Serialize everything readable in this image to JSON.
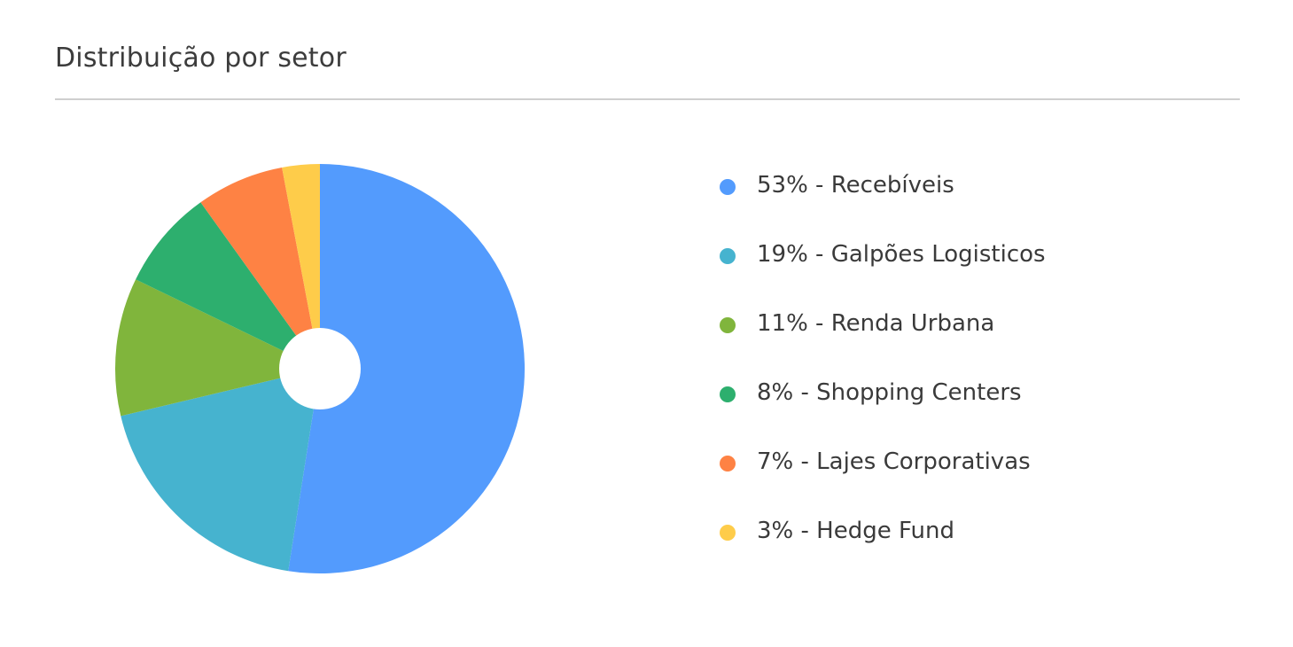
{
  "card": {
    "title": "Distribuição por setor"
  },
  "chart_data": {
    "type": "pie",
    "title": "Distribuição por setor",
    "donut_hole": true,
    "start_angle": "top",
    "direction": "clockwise",
    "legend_position": "right",
    "categories": [
      "Recebíveis",
      "Galpões Logisticos",
      "Renda Urbana",
      "Shopping Centers",
      "Lajes Corporativas",
      "Hedge Fund"
    ],
    "values": [
      53,
      19,
      11,
      8,
      7,
      3
    ],
    "colors": [
      "#539bfd",
      "#46b3cf",
      "#80b53c",
      "#2daf6e",
      "#fe8244",
      "#fecc4a"
    ],
    "legend": [
      {
        "label": "53% - Recebíveis",
        "color": "#539bfd"
      },
      {
        "label": "19% - Galpões Logisticos",
        "color": "#46b3cf"
      },
      {
        "label": "11% - Renda Urbana",
        "color": "#80b53c"
      },
      {
        "label": "8% - Shopping Centers",
        "color": "#2daf6e"
      },
      {
        "label": "7% - Lajes Corporativas",
        "color": "#fe8244"
      },
      {
        "label": "3% - Hedge Fund",
        "color": "#fecc4a"
      }
    ]
  }
}
